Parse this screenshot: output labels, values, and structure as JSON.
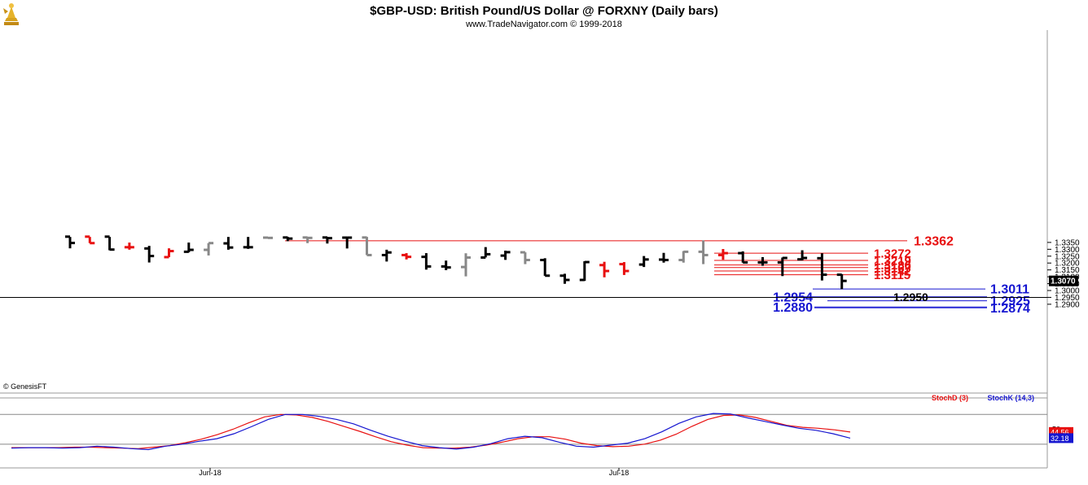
{
  "header": {
    "title": "$GBP-USD:  British Pound/US Dollar @ FORXNY  (Daily bars)",
    "subtitle": "www.TradeNavigator.com © 1999-2018",
    "logo_icon": "lamp-icon"
  },
  "watermark": "© GenesisFT",
  "chart_data": [
    {
      "type": "ohlc",
      "title": "$GBP-USD:  British Pound/US Dollar @ FORXNY  (Daily bars)",
      "ylim": [
        1.285,
        1.3385
      ],
      "y_ticks": [
        "1.2900",
        "1.2950",
        "1.3000",
        "1.3050",
        "1.3100",
        "1.3150",
        "1.3200",
        "1.3250",
        "1.3300",
        "1.3350"
      ],
      "x_labels": [
        "Jun-18",
        "Jul-18"
      ],
      "last_price": "1.3070",
      "colors": {
        "black": "#000000",
        "red": "#e81010",
        "gray": "#888888"
      },
      "bars": [
        {
          "o": 1.3392,
          "h": 1.339,
          "l": 1.3307,
          "c": 1.3346,
          "color": "black"
        },
        {
          "o": 1.3392,
          "h": 1.339,
          "l": 1.3345,
          "c": 1.3345,
          "color": "red"
        },
        {
          "o": 1.3392,
          "h": 1.339,
          "l": 1.3293,
          "c": 1.3298,
          "color": "black"
        },
        {
          "o": 1.3315,
          "h": 1.3349,
          "l": 1.3297,
          "c": 1.3315,
          "color": "red"
        },
        {
          "o": 1.3306,
          "h": 1.3325,
          "l": 1.3204,
          "c": 1.3251,
          "color": "black"
        },
        {
          "o": 1.3243,
          "h": 1.3307,
          "l": 1.3243,
          "c": 1.3287,
          "color": "red"
        },
        {
          "o": 1.3282,
          "h": 1.3349,
          "l": 1.3278,
          "c": 1.3296,
          "color": "black"
        },
        {
          "o": 1.3296,
          "h": 1.3345,
          "l": 1.3255,
          "c": 1.3345,
          "color": "gray"
        },
        {
          "o": 1.3343,
          "h": 1.339,
          "l": 1.3297,
          "c": 1.3313,
          "color": "black"
        },
        {
          "o": 1.3315,
          "h": 1.339,
          "l": 1.3303,
          "c": 1.3315,
          "color": "black"
        },
        {
          "o": 1.3385,
          "h": 1.3388,
          "l": 1.3379,
          "c": 1.3383,
          "color": "gray"
        },
        {
          "o": 1.3386,
          "h": 1.339,
          "l": 1.3359,
          "c": 1.3378,
          "color": "black"
        },
        {
          "o": 1.3386,
          "h": 1.339,
          "l": 1.3345,
          "c": 1.3383,
          "color": "gray"
        },
        {
          "o": 1.3386,
          "h": 1.339,
          "l": 1.3342,
          "c": 1.3381,
          "color": "black"
        },
        {
          "o": 1.3385,
          "h": 1.339,
          "l": 1.3306,
          "c": 1.3385,
          "color": "black"
        },
        {
          "o": 1.3386,
          "h": 1.339,
          "l": 1.3258,
          "c": 1.3258,
          "color": "gray"
        },
        {
          "o": 1.3258,
          "h": 1.3297,
          "l": 1.3211,
          "c": 1.3277,
          "color": "black"
        },
        {
          "o": 1.3258,
          "h": 1.3272,
          "l": 1.3226,
          "c": 1.3245,
          "color": "red"
        },
        {
          "o": 1.3245,
          "h": 1.3272,
          "l": 1.3152,
          "c": 1.3175,
          "color": "black"
        },
        {
          "o": 1.3175,
          "h": 1.3218,
          "l": 1.3148,
          "c": 1.3168,
          "color": "black"
        },
        {
          "o": 1.3171,
          "h": 1.3271,
          "l": 1.3103,
          "c": 1.324,
          "color": "gray"
        },
        {
          "o": 1.324,
          "h": 1.3316,
          "l": 1.3241,
          "c": 1.3264,
          "color": "black"
        },
        {
          "o": 1.3254,
          "h": 1.329,
          "l": 1.3223,
          "c": 1.3279,
          "color": "black"
        },
        {
          "o": 1.3278,
          "h": 1.3278,
          "l": 1.3192,
          "c": 1.3222,
          "color": "gray"
        },
        {
          "o": 1.3222,
          "h": 1.3235,
          "l": 1.3107,
          "c": 1.3108,
          "color": "black"
        },
        {
          "o": 1.3108,
          "h": 1.3122,
          "l": 1.3049,
          "c": 1.3077,
          "color": "black"
        },
        {
          "o": 1.3077,
          "h": 1.3213,
          "l": 1.307,
          "c": 1.3207,
          "color": "black"
        },
        {
          "o": 1.3185,
          "h": 1.3209,
          "l": 1.3096,
          "c": 1.3142,
          "color": "red"
        },
        {
          "o": 1.3192,
          "h": 1.3207,
          "l": 1.3113,
          "c": 1.3142,
          "color": "red"
        },
        {
          "o": 1.3189,
          "h": 1.3251,
          "l": 1.3171,
          "c": 1.3226,
          "color": "black"
        },
        {
          "o": 1.3225,
          "h": 1.3274,
          "l": 1.3203,
          "c": 1.3222,
          "color": "black"
        },
        {
          "o": 1.3222,
          "h": 1.3287,
          "l": 1.3203,
          "c": 1.3282,
          "color": "gray"
        },
        {
          "o": 1.3282,
          "h": 1.3365,
          "l": 1.3192,
          "c": 1.3258,
          "color": "gray"
        },
        {
          "o": 1.3258,
          "h": 1.3302,
          "l": 1.3224,
          "c": 1.3272,
          "color": "red"
        },
        {
          "o": 1.3272,
          "h": 1.3285,
          "l": 1.3203,
          "c": 1.3204,
          "color": "black"
        },
        {
          "o": 1.3204,
          "h": 1.3243,
          "l": 1.318,
          "c": 1.3204,
          "color": "black"
        },
        {
          "o": 1.3204,
          "h": 1.324,
          "l": 1.3105,
          "c": 1.3237,
          "color": "black"
        },
        {
          "o": 1.3227,
          "h": 1.3293,
          "l": 1.3219,
          "c": 1.3237,
          "color": "black"
        },
        {
          "o": 1.3235,
          "h": 1.3271,
          "l": 1.3073,
          "c": 1.3115,
          "color": "black"
        },
        {
          "o": 1.3115,
          "h": 1.3119,
          "l": 1.301,
          "c": 1.307,
          "color": "black"
        }
      ],
      "levels": [
        {
          "value": 1.3362,
          "label": "1.3362",
          "color": "#e81010",
          "kind": "resistance"
        },
        {
          "value": 1.3272,
          "label": "1.3272",
          "color": "#e81010",
          "kind": "resistance"
        },
        {
          "value": 1.3219,
          "label": "1.3219",
          "color": "#e81010",
          "kind": "resistance"
        },
        {
          "value": 1.3186,
          "label": "1.3186",
          "color": "#e81010",
          "kind": "resistance"
        },
        {
          "value": 1.3167,
          "label": "1.3167",
          "color": "#e81010",
          "kind": "resistance"
        },
        {
          "value": 1.3142,
          "label": "1.3142",
          "color": "#e81010",
          "kind": "resistance"
        },
        {
          "value": 1.3115,
          "label": "1.3115",
          "color": "#e81010",
          "kind": "resistance"
        },
        {
          "value": 1.3011,
          "label": "1.3011",
          "color": "#1515d0",
          "kind": "support"
        },
        {
          "value": 1.2954,
          "label": "1.2954",
          "color": "#1515d0",
          "kind": "support"
        },
        {
          "value": 1.2925,
          "label": "1.2925",
          "color": "#1515d0",
          "kind": "support"
        },
        {
          "value": 1.288,
          "label": "1.2880",
          "color": "#1515d0",
          "kind": "support"
        },
        {
          "value": 1.2874,
          "label": "1.2874",
          "color": "#1515d0",
          "kind": "support"
        }
      ],
      "reference_line": {
        "value": 1.295,
        "label": "1.2950",
        "color": "#000000"
      }
    },
    {
      "type": "line",
      "title": "",
      "legend": [
        "StochD (3)",
        "StochK (14,3)"
      ],
      "ylim": [
        0,
        100
      ],
      "y_ticks": [
        "50"
      ],
      "reference_levels": [
        20,
        80
      ],
      "series": [
        {
          "name": "StochD (3)",
          "color": "#e81010",
          "last": "44.56",
          "values": [
            13,
            13,
            13,
            13,
            14,
            14,
            13,
            12,
            11,
            14,
            17,
            23,
            30,
            39,
            50,
            63,
            75,
            80,
            79,
            74,
            66,
            56,
            46,
            35,
            25,
            18,
            13,
            12,
            12,
            14,
            18,
            24,
            31,
            35,
            35,
            30,
            22,
            17,
            15,
            16,
            20,
            28,
            40,
            56,
            70,
            78,
            79,
            74,
            66,
            58,
            54,
            52,
            49,
            44.56
          ]
        },
        {
          "name": "StochK (14,3)",
          "color": "#1515d0",
          "last": "32.18",
          "values": [
            12,
            13,
            13,
            12,
            13,
            16,
            14,
            11,
            9,
            16,
            20,
            26,
            31,
            41,
            55,
            70,
            80,
            80,
            76,
            70,
            61,
            48,
            36,
            26,
            17,
            13,
            10,
            14,
            21,
            31,
            36,
            33,
            24,
            16,
            14,
            18,
            22,
            31,
            45,
            62,
            75,
            82,
            81,
            73,
            66,
            59,
            52,
            48,
            41,
            32.18
          ]
        }
      ]
    }
  ]
}
